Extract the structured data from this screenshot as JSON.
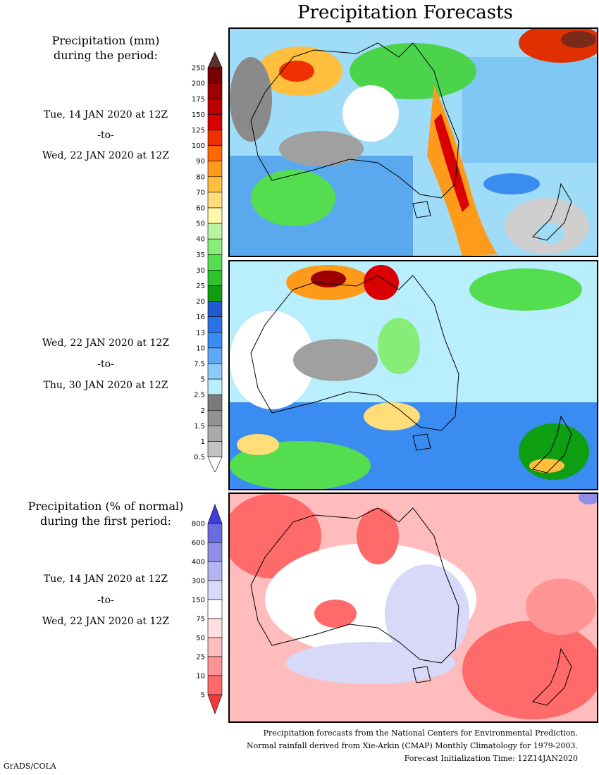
{
  "title": "Precipitation Forecasts",
  "amount_heading": [
    "Precipitation (mm)",
    "during the period:"
  ],
  "period1": {
    "start": "Tue, 14 JAN 2020 at 12Z",
    "sep": "-to-",
    "end": "Wed, 22 JAN 2020 at 12Z"
  },
  "period2": {
    "start": "Wed, 22 JAN 2020 at 12Z",
    "sep": "-to-",
    "end": "Thu, 30 JAN 2020 at 12Z"
  },
  "pct_heading": [
    "Precipitation (% of normal)",
    "during the first period:"
  ],
  "period3": {
    "start": "Tue, 14 JAN 2020 at 12Z",
    "sep": "-to-",
    "end": "Wed, 22 JAN 2020 at 12Z"
  },
  "footer": [
    "Precipitation forecasts from the National Centers for Environmental Prediction.",
    "Normal rainfall derived from Xie-Arkin (CMAP) Monthly Climatology for 1979-2003.",
    "Forecast Initialization Time: 12Z14JAN2020"
  ],
  "credit": "GrADS/COLA",
  "amount_scale": {
    "labels": [
      "250",
      "200",
      "175",
      "150",
      "125",
      "100",
      "90",
      "80",
      "70",
      "60",
      "50",
      "40",
      "35",
      "30",
      "25",
      "20",
      "16",
      "13",
      "10",
      "7.5",
      "5",
      "2.5",
      "2",
      "1.5",
      "1",
      "0.5"
    ],
    "colors": [
      "#5a2f28",
      "#7a0000",
      "#9c0000",
      "#bb0000",
      "#d80000",
      "#f03000",
      "#ff6a00",
      "#ff9a1a",
      "#ffbe3d",
      "#ffde7a",
      "#fff7aa",
      "#b8f5a0",
      "#88ec78",
      "#55dd50",
      "#2cc42a",
      "#0e9e12",
      "#1f5bd0",
      "#2a72e6",
      "#3b8cf0",
      "#5caaf5",
      "#8ccaf8",
      "#b9eefc",
      "#7a7a7a",
      "#929292",
      "#aaaaaa",
      "#c3c3c3",
      "#ffffff"
    ]
  },
  "pct_scale": {
    "labels": [
      "800",
      "600",
      "400",
      "300",
      "150",
      "75",
      "50",
      "25",
      "10",
      "5"
    ],
    "colors": [
      "#3f3fd8",
      "#6b6be0",
      "#8f8fe8",
      "#b4b4f0",
      "#d8d8f8",
      "#ffffff",
      "#ffe0e0",
      "#ffbcbc",
      "#ff9494",
      "#ff6a6a",
      "#f03a3a"
    ]
  }
}
